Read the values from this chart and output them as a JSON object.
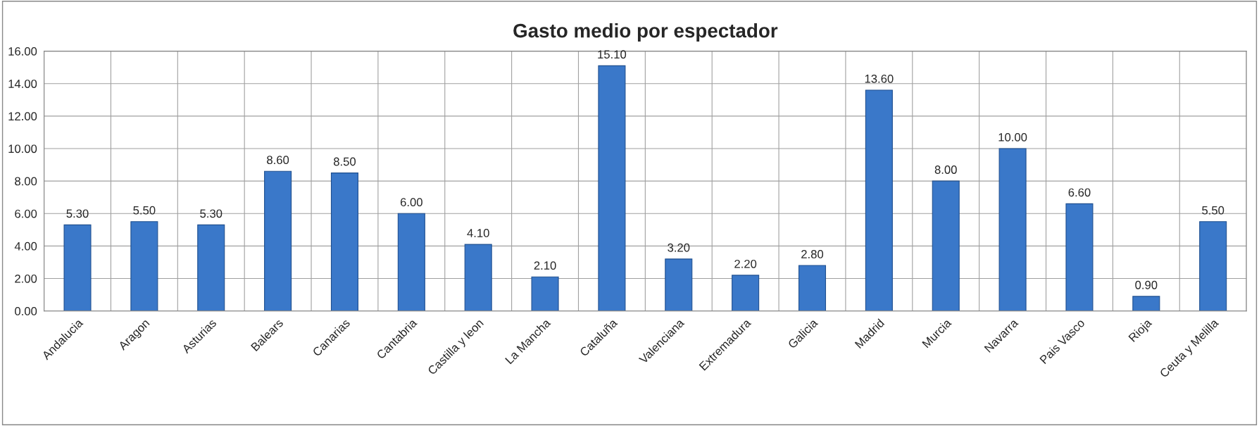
{
  "chart_data": {
    "type": "bar",
    "title": "Gasto medio por espectador",
    "categories": [
      "Andalucia",
      "Aragon",
      "Asturias",
      "Balears",
      "Canarias",
      "Cantabria",
      "Castilla y leon",
      "La Mancha",
      "Cataluña",
      "Valenciana",
      "Extremadura",
      "Galicia",
      "Madrid",
      "Murcia",
      "Navarra",
      "Pais Vasco",
      "Rioja",
      "Ceuta y Melilla"
    ],
    "values": [
      5.3,
      5.5,
      5.3,
      8.6,
      8.5,
      6.0,
      4.1,
      2.1,
      15.1,
      3.2,
      2.2,
      2.8,
      13.6,
      8.0,
      10.0,
      6.6,
      0.9,
      5.5
    ],
    "value_labels": [
      "5.30",
      "5.50",
      "5.30",
      "8.60",
      "8.50",
      "6.00",
      "4.10",
      "2.10",
      "15.10",
      "3.20",
      "2.20",
      "2.80",
      "13.60",
      "8.00",
      "10.00",
      "6.60",
      "0.90",
      "5.50"
    ],
    "color": "#3a78c9",
    "ylim": [
      0,
      16
    ],
    "yticks": [
      {
        "value": 0,
        "label": "0.00"
      },
      {
        "value": 2,
        "label": "2.00"
      },
      {
        "value": 4,
        "label": "4.00"
      },
      {
        "value": 6,
        "label": "6.00"
      },
      {
        "value": 8,
        "label": "8.00"
      },
      {
        "value": 10,
        "label": "10.00"
      },
      {
        "value": 12,
        "label": "12.00"
      },
      {
        "value": 14,
        "label": "14.00"
      },
      {
        "value": 16,
        "label": "16.00"
      }
    ],
    "grid": true
  }
}
